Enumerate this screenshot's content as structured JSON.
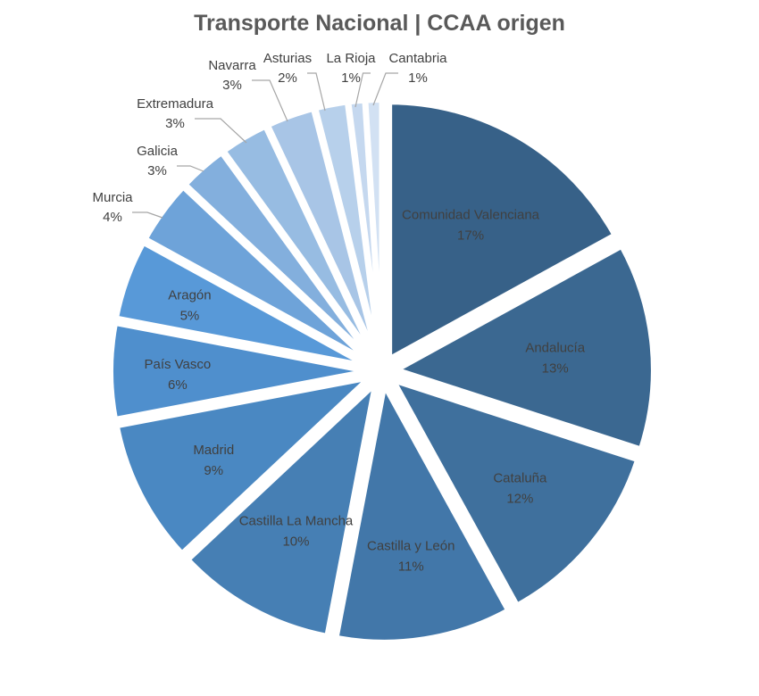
{
  "chart_data": {
    "type": "pie",
    "title": "Transporte Nacional  | CCAA origen",
    "slices": [
      {
        "label": "Comunidad Valenciana",
        "value": 17,
        "pct_text": "17%",
        "color": "#376188"
      },
      {
        "label": "Andalucía",
        "value": 13,
        "pct_text": "13%",
        "color": "#3b6891"
      },
      {
        "label": "Cataluña",
        "value": 12,
        "pct_text": "12%",
        "color": "#3f709d"
      },
      {
        "label": "Castilla y León",
        "value": 11,
        "pct_text": "11%",
        "color": "#4277a9"
      },
      {
        "label": "Castilla La Mancha",
        "value": 10,
        "pct_text": "10%",
        "color": "#467fb4"
      },
      {
        "label": "Madrid",
        "value": 9,
        "pct_text": "9%",
        "color": "#4a88c2"
      },
      {
        "label": "País Vasco",
        "value": 6,
        "pct_text": "6%",
        "color": "#4f8fcd"
      },
      {
        "label": "Aragón",
        "value": 5,
        "pct_text": "5%",
        "color": "#5899d8"
      },
      {
        "label": "Murcia",
        "value": 4,
        "pct_text": "4%",
        "color": "#6ea3d9"
      },
      {
        "label": "Galicia",
        "value": 3,
        "pct_text": "3%",
        "color": "#83afdd"
      },
      {
        "label": "Extremadura",
        "value": 3,
        "pct_text": "3%",
        "color": "#97bce2"
      },
      {
        "label": "Navarra",
        "value": 3,
        "pct_text": "3%",
        "color": "#a8c5e6"
      },
      {
        "label": "Asturias",
        "value": 2,
        "pct_text": "2%",
        "color": "#b7d0eb"
      },
      {
        "label": "La Rioja",
        "value": 1,
        "pct_text": "1%",
        "color": "#c5d8ef"
      },
      {
        "label": "Cantabria",
        "value": 1,
        "pct_text": "1%",
        "color": "#d2e1f3"
      }
    ],
    "start": "top",
    "direction": "clockwise",
    "exploded": true
  }
}
